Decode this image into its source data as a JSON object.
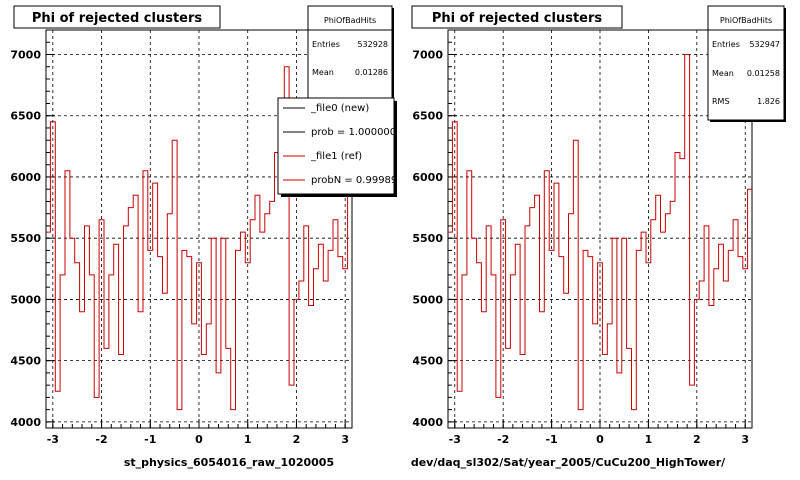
{
  "chart_data": [
    {
      "type": "line",
      "title": "Phi of rejected clusters",
      "xlabel": "st_physics_6054016_raw_1020005",
      "xlim": [
        -3.14,
        3.14
      ],
      "ylim": [
        3950,
        7200
      ],
      "xticks": [
        -3,
        -2,
        -1,
        0,
        1,
        2,
        3
      ],
      "yticks": [
        4000,
        4500,
        5000,
        5500,
        6000,
        6500,
        7000
      ],
      "grid": true,
      "stats_box": {
        "name": "PhiOfBadHits",
        "rows": [
          {
            "label": "Entries",
            "value": "532928"
          },
          {
            "label": "Mean",
            "value": "0.01286"
          }
        ]
      },
      "legend": {
        "position": "top-right",
        "entries": [
          {
            "text": "_file0 (new)",
            "color": "#000000"
          },
          {
            "text": "prob = 1.000000",
            "color": "#000000"
          },
          {
            "text": "_file1 (ref)",
            "color": "#cc0000"
          },
          {
            "text": "probN = 0.99989",
            "color": "#cc0000"
          }
        ]
      },
      "series": [
        {
          "color": "#cc0000",
          "x": [
            -3.1,
            -3.0,
            -2.9,
            -2.8,
            -2.7,
            -2.6,
            -2.5,
            -2.4,
            -2.3,
            -2.2,
            -2.1,
            -2.0,
            -1.9,
            -1.8,
            -1.7,
            -1.6,
            -1.5,
            -1.4,
            -1.3,
            -1.2,
            -1.1,
            -1.0,
            -0.9,
            -0.8,
            -0.7,
            -0.6,
            -0.5,
            -0.4,
            -0.3,
            -0.2,
            -0.1,
            0.0,
            0.1,
            0.2,
            0.3,
            0.4,
            0.5,
            0.6,
            0.7,
            0.8,
            0.9,
            1.0,
            1.1,
            1.2,
            1.3,
            1.4,
            1.5,
            1.6,
            1.7,
            1.8,
            1.9,
            2.0,
            2.1,
            2.2,
            2.3,
            2.4,
            2.5,
            2.6,
            2.7,
            2.8,
            2.9,
            3.0,
            3.1
          ],
          "values": [
            5550,
            6450,
            4250,
            5200,
            6050,
            5500,
            5300,
            4900,
            5600,
            5200,
            4200,
            5650,
            4600,
            5200,
            5450,
            4550,
            5600,
            5750,
            5850,
            4900,
            6050,
            5400,
            5950,
            5350,
            5050,
            5700,
            6300,
            4100,
            5400,
            5350,
            4800,
            5300,
            4550,
            4800,
            5500,
            4400,
            5500,
            4600,
            4100,
            5400,
            5550,
            5300,
            5650,
            5850,
            5550,
            5700,
            5800,
            6200,
            6150,
            6900,
            4300,
            5000,
            5150,
            5600,
            4950,
            5250,
            5450,
            5150,
            5400,
            5650,
            5350,
            5250,
            5900
          ]
        }
      ]
    },
    {
      "type": "line",
      "title": "Phi of rejected clusters",
      "xlabel": "dev/daq_sl302/Sat/year_2005/CuCu200_HighTower/",
      "xlim": [
        -3.14,
        3.14
      ],
      "ylim": [
        3950,
        7200
      ],
      "xticks": [
        -3,
        -2,
        -1,
        0,
        1,
        2,
        3
      ],
      "yticks": [
        4000,
        4500,
        5000,
        5500,
        6000,
        6500,
        7000
      ],
      "grid": true,
      "stats_box": {
        "name": "PhiOfBadHits",
        "rows": [
          {
            "label": "Entries",
            "value": "532947"
          },
          {
            "label": "Mean",
            "value": "0.01258"
          },
          {
            "label": "RMS",
            "value": "1.826"
          }
        ]
      },
      "series": [
        {
          "color": "#cc0000",
          "x": [
            -3.1,
            -3.0,
            -2.9,
            -2.8,
            -2.7,
            -2.6,
            -2.5,
            -2.4,
            -2.3,
            -2.2,
            -2.1,
            -2.0,
            -1.9,
            -1.8,
            -1.7,
            -1.6,
            -1.5,
            -1.4,
            -1.3,
            -1.2,
            -1.1,
            -1.0,
            -0.9,
            -0.8,
            -0.7,
            -0.6,
            -0.5,
            -0.4,
            -0.3,
            -0.2,
            -0.1,
            0.0,
            0.1,
            0.2,
            0.3,
            0.4,
            0.5,
            0.6,
            0.7,
            0.8,
            0.9,
            1.0,
            1.1,
            1.2,
            1.3,
            1.4,
            1.5,
            1.6,
            1.7,
            1.8,
            1.9,
            2.0,
            2.1,
            2.2,
            2.3,
            2.4,
            2.5,
            2.6,
            2.7,
            2.8,
            2.9,
            3.0,
            3.1
          ],
          "values": [
            5550,
            6450,
            4250,
            5200,
            6050,
            5500,
            5300,
            4900,
            5600,
            5200,
            4200,
            5650,
            4600,
            5200,
            5450,
            4550,
            5600,
            5750,
            5850,
            4900,
            6050,
            5400,
            5950,
            5350,
            5050,
            5700,
            6300,
            4100,
            5400,
            5350,
            4800,
            5300,
            4550,
            4800,
            5500,
            4400,
            5500,
            4600,
            4100,
            5400,
            5550,
            5300,
            5650,
            5850,
            5550,
            5700,
            5800,
            6200,
            6150,
            7000,
            4300,
            5000,
            5150,
            5600,
            4950,
            5250,
            5450,
            5150,
            5400,
            5650,
            5350,
            5250,
            5900
          ]
        }
      ]
    }
  ]
}
